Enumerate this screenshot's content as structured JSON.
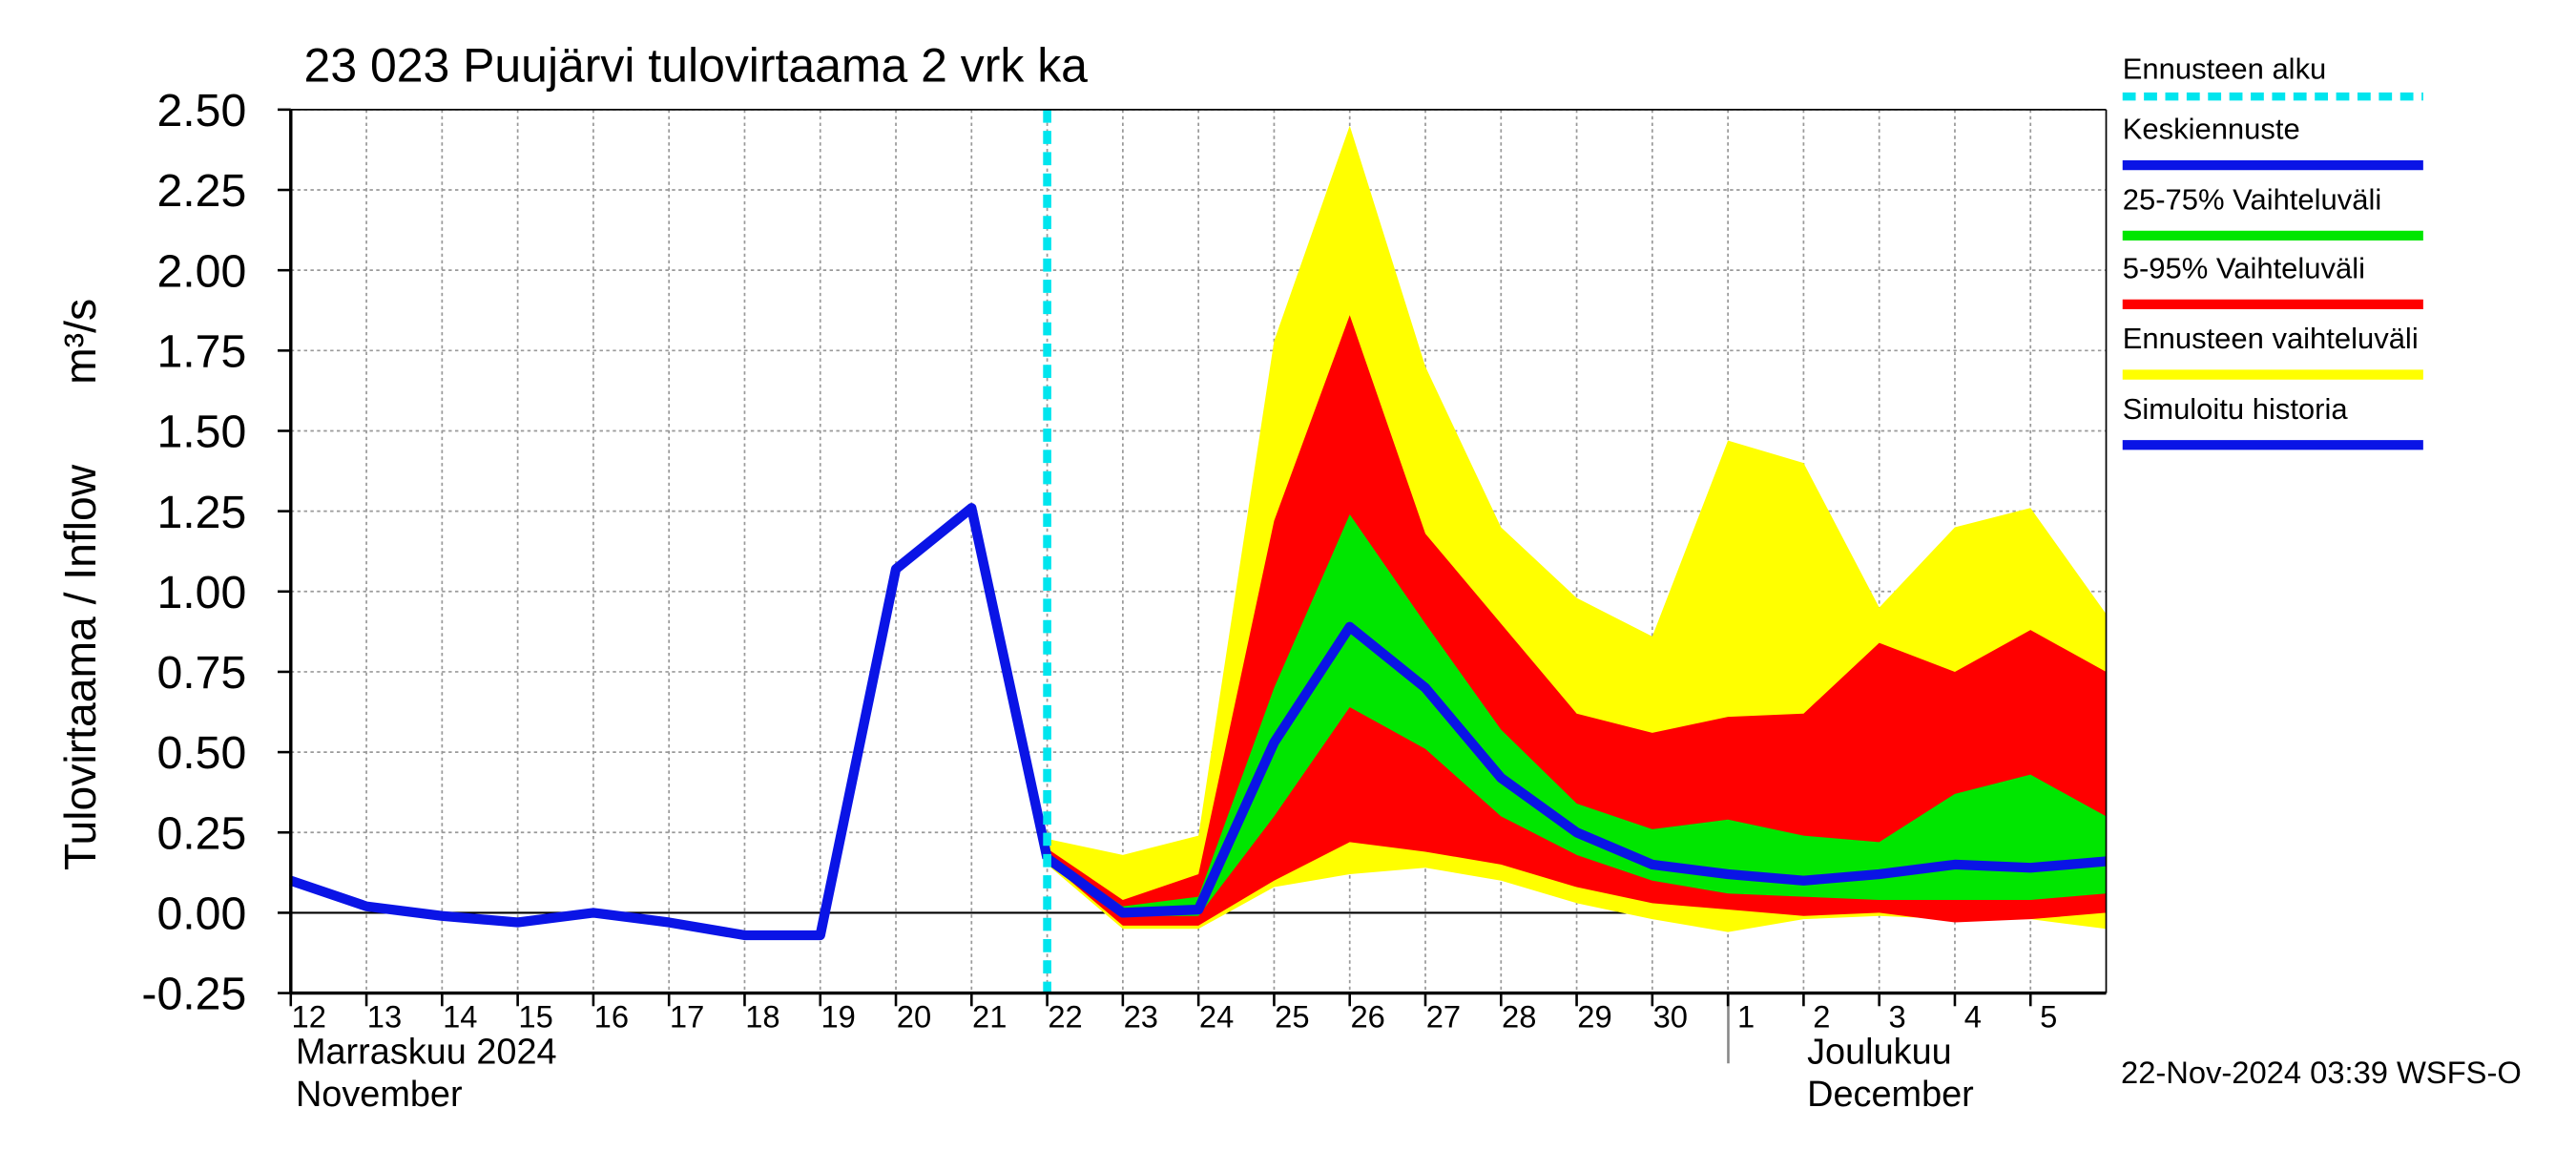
{
  "chart_data": {
    "type": "line",
    "title": "23 023 Puujärvi tulovirtaama 2 vrk ka",
    "ylabel": "Tulovirtaama / Inflow",
    "yunit": "m³/s",
    "month_labels": [
      "Marraskuu 2024",
      "November",
      "Joulukuu",
      "December"
    ],
    "footer": "22-Nov-2024 03:39 WSFS-O",
    "xlim": [
      "2024-11-12",
      "2024-12-06"
    ],
    "xticks": [
      {
        "value": "2024-11-12",
        "label": "12"
      },
      {
        "value": "2024-11-13",
        "label": "13"
      },
      {
        "value": "2024-11-14",
        "label": "14"
      },
      {
        "value": "2024-11-15",
        "label": "15"
      },
      {
        "value": "2024-11-16",
        "label": "16"
      },
      {
        "value": "2024-11-17",
        "label": "17"
      },
      {
        "value": "2024-11-18",
        "label": "18"
      },
      {
        "value": "2024-11-19",
        "label": "19"
      },
      {
        "value": "2024-11-20",
        "label": "20"
      },
      {
        "value": "2024-11-21",
        "label": "21"
      },
      {
        "value": "2024-11-22",
        "label": "22"
      },
      {
        "value": "2024-11-23",
        "label": "23"
      },
      {
        "value": "2024-11-24",
        "label": "24"
      },
      {
        "value": "2024-11-25",
        "label": "25"
      },
      {
        "value": "2024-11-26",
        "label": "26"
      },
      {
        "value": "2024-11-27",
        "label": "27"
      },
      {
        "value": "2024-11-28",
        "label": "28"
      },
      {
        "value": "2024-11-29",
        "label": "29"
      },
      {
        "value": "2024-11-30",
        "label": "30"
      },
      {
        "value": "2024-12-01",
        "label": "1"
      },
      {
        "value": "2024-12-02",
        "label": "2"
      },
      {
        "value": "2024-12-03",
        "label": "3"
      },
      {
        "value": "2024-12-04",
        "label": "4"
      },
      {
        "value": "2024-12-05",
        "label": "5"
      }
    ],
    "ylim": [
      -0.25,
      2.5
    ],
    "yticks": [
      -0.25,
      {
        "value": 0,
        "label": "0.00"
      },
      0.25,
      {
        "value": 0.5,
        "label": "0.50"
      },
      0.75,
      {
        "value": 1,
        "label": "1.00"
      },
      1.25,
      {
        "value": 1.5,
        "label": "1.50"
      },
      1.75,
      {
        "value": 2,
        "label": "2.00"
      },
      2.25,
      {
        "value": 2.5,
        "label": "2.50"
      }
    ],
    "grid": true,
    "forecast_start": {
      "name": "Ennusteen alku",
      "x": "2024-11-22",
      "color": "#00e5ee"
    },
    "series": [
      {
        "name": "Keskiennuste",
        "color": "#0a14e6",
        "x": [
          "2024-11-22",
          "2024-11-23",
          "2024-11-24",
          "2024-11-25",
          "2024-11-26",
          "2024-11-27",
          "2024-11-28",
          "2024-11-29",
          "2024-11-30",
          "2024-12-01",
          "2024-12-02",
          "2024-12-03",
          "2024-12-04",
          "2024-12-05",
          "2024-12-06"
        ],
        "values": [
          0.17,
          0.0,
          0.01,
          0.53,
          0.89,
          0.7,
          0.42,
          0.25,
          0.15,
          0.12,
          0.1,
          0.12,
          0.15,
          0.14,
          0.16
        ]
      },
      {
        "name": "25-75% Vaihteluväli",
        "color": "#00e600",
        "x": [
          "2024-11-22",
          "2024-11-23",
          "2024-11-24",
          "2024-11-25",
          "2024-11-26",
          "2024-11-27",
          "2024-11-28",
          "2024-11-29",
          "2024-11-30",
          "2024-12-01",
          "2024-12-02",
          "2024-12-03",
          "2024-12-04",
          "2024-12-05",
          "2024-12-06"
        ],
        "low": [
          0.17,
          -0.01,
          -0.01,
          0.3,
          0.64,
          0.51,
          0.3,
          0.18,
          0.1,
          0.06,
          0.05,
          0.04,
          0.04,
          0.04,
          0.06
        ],
        "high": [
          0.18,
          0.02,
          0.05,
          0.7,
          1.24,
          0.9,
          0.57,
          0.34,
          0.26,
          0.29,
          0.24,
          0.22,
          0.37,
          0.43,
          0.3
        ]
      },
      {
        "name": "5-95% Vaihteluväli",
        "color": "#ff0000",
        "x": [
          "2024-11-22",
          "2024-11-23",
          "2024-11-24",
          "2024-11-25",
          "2024-11-26",
          "2024-11-27",
          "2024-11-28",
          "2024-11-29",
          "2024-11-30",
          "2024-12-01",
          "2024-12-02",
          "2024-12-03",
          "2024-12-04",
          "2024-12-05",
          "2024-12-06"
        ],
        "low": [
          0.16,
          -0.04,
          -0.04,
          0.1,
          0.22,
          0.19,
          0.15,
          0.08,
          0.03,
          0.01,
          -0.01,
          0.0,
          -0.03,
          -0.02,
          0.0
        ],
        "high": [
          0.2,
          0.04,
          0.12,
          1.22,
          1.86,
          1.18,
          0.9,
          0.62,
          0.56,
          0.61,
          0.62,
          0.84,
          0.75,
          0.88,
          0.75
        ]
      },
      {
        "name": "Ennusteen vaihteluväli",
        "color": "#ffff00",
        "x": [
          "2024-11-22",
          "2024-11-23",
          "2024-11-24",
          "2024-11-25",
          "2024-11-26",
          "2024-11-27",
          "2024-11-28",
          "2024-11-29",
          "2024-11-30",
          "2024-12-01",
          "2024-12-02",
          "2024-12-03",
          "2024-12-04",
          "2024-12-05",
          "2024-12-06"
        ],
        "low": [
          0.15,
          -0.05,
          -0.05,
          0.08,
          0.12,
          0.14,
          0.1,
          0.03,
          -0.02,
          -0.06,
          -0.02,
          -0.01,
          -0.02,
          -0.02,
          -0.05
        ],
        "high": [
          0.23,
          0.18,
          0.24,
          1.78,
          2.45,
          1.7,
          1.2,
          0.98,
          0.86,
          1.47,
          1.4,
          0.95,
          1.2,
          1.26,
          0.93
        ]
      },
      {
        "name": "Simuloitu historia",
        "color": "#0a14e6",
        "x": [
          "2024-11-12",
          "2024-11-13",
          "2024-11-14",
          "2024-11-15",
          "2024-11-16",
          "2024-11-17",
          "2024-11-18",
          "2024-11-19",
          "2024-11-20",
          "2024-11-21",
          "2024-11-22"
        ],
        "values": [
          0.1,
          0.02,
          -0.01,
          -0.03,
          0.0,
          -0.03,
          -0.07,
          -0.07,
          1.07,
          1.26,
          0.17
        ]
      }
    ]
  }
}
